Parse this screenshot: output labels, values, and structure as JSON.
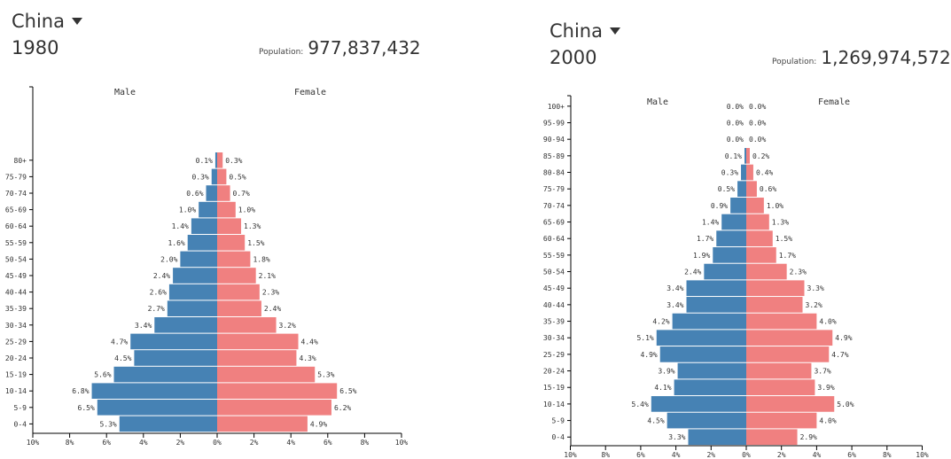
{
  "charts": [
    {
      "country": "China",
      "year": "1980",
      "population_label": "Population:",
      "population": "977,837,432"
    },
    {
      "country": "China",
      "year": "2000",
      "population_label": "Population:",
      "population": "1,269,974,572"
    }
  ],
  "colors": {
    "male": "#4682b4",
    "female": "#f08080",
    "axis": "#000000"
  },
  "chart_data": [
    {
      "type": "bar",
      "orientation": "horizontal-population-pyramid",
      "title": "China 1980",
      "left_label": "Male",
      "right_label": "Female",
      "categories": [
        "0-4",
        "5-9",
        "10-14",
        "15-19",
        "20-24",
        "25-29",
        "30-34",
        "35-39",
        "40-44",
        "45-49",
        "50-54",
        "55-59",
        "60-64",
        "65-69",
        "70-74",
        "75-79",
        "80+"
      ],
      "series": [
        {
          "name": "Male",
          "values": [
            5.3,
            6.5,
            6.8,
            5.6,
            4.5,
            4.7,
            3.4,
            2.7,
            2.6,
            2.4,
            2.0,
            1.6,
            1.4,
            1.0,
            0.6,
            0.3,
            0.1
          ]
        },
        {
          "name": "Female",
          "values": [
            4.9,
            6.2,
            6.5,
            5.3,
            4.3,
            4.4,
            3.2,
            2.4,
            2.3,
            2.1,
            1.8,
            1.5,
            1.3,
            1.0,
            0.7,
            0.5,
            0.3
          ]
        }
      ],
      "x_ticks": [
        "10%",
        "8%",
        "6%",
        "4%",
        "2%",
        "0%",
        "2%",
        "4%",
        "6%",
        "8%",
        "10%"
      ],
      "xlim": [
        -10,
        10
      ]
    },
    {
      "type": "bar",
      "orientation": "horizontal-population-pyramid",
      "title": "China 2000",
      "left_label": "Male",
      "right_label": "Female",
      "categories": [
        "0-4",
        "5-9",
        "10-14",
        "15-19",
        "20-24",
        "25-29",
        "30-34",
        "35-39",
        "40-44",
        "45-49",
        "50-54",
        "55-59",
        "60-64",
        "65-69",
        "70-74",
        "75-79",
        "80-84",
        "85-89",
        "90-94",
        "95-99",
        "100+"
      ],
      "series": [
        {
          "name": "Male",
          "values": [
            3.3,
            4.5,
            5.4,
            4.1,
            3.9,
            4.9,
            5.1,
            4.2,
            3.4,
            3.4,
            2.4,
            1.9,
            1.7,
            1.4,
            0.9,
            0.5,
            0.3,
            0.1,
            0.0,
            0.0,
            0.0
          ]
        },
        {
          "name": "Female",
          "values": [
            2.9,
            4.0,
            5.0,
            3.9,
            3.7,
            4.7,
            4.9,
            4.0,
            3.2,
            3.3,
            2.3,
            1.7,
            1.5,
            1.3,
            1.0,
            0.6,
            0.4,
            0.2,
            0.0,
            0.0,
            0.0
          ]
        }
      ],
      "x_ticks": [
        "10%",
        "8%",
        "6%",
        "4%",
        "2%",
        "0%",
        "2%",
        "4%",
        "6%",
        "8%",
        "10%"
      ],
      "xlim": [
        -10,
        10
      ]
    }
  ]
}
